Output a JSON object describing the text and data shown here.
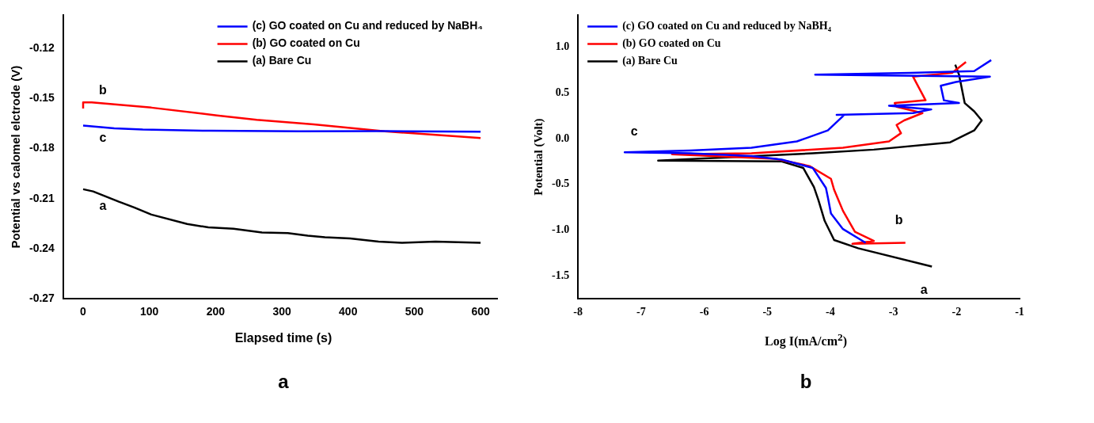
{
  "chart_data": [
    {
      "type": "line",
      "title": "a",
      "xlabel": "Elapsed time (s)",
      "ylabel": "Potential vs calomel elctrode (V)",
      "xlim": [
        -30,
        625
      ],
      "ylim": [
        -0.27,
        -0.1
      ],
      "xticks": [
        0,
        100,
        200,
        300,
        400,
        500,
        600
      ],
      "yticks": [
        -0.27,
        -0.24,
        -0.21,
        -0.18,
        -0.15,
        -0.12
      ],
      "grid": false,
      "legend": "top right",
      "marker": "none",
      "line_style": "solid",
      "series": [
        {
          "name": "(c) GO coated on Cu and reduced by NaBH₄",
          "color": "#0000ff",
          "x": [
            0,
            47,
            90,
            193,
            326,
            455,
            600
          ],
          "values": [
            -0.1662,
            -0.1678,
            -0.1686,
            -0.1693,
            -0.1696,
            -0.1695,
            -0.1698
          ]
        },
        {
          "name": "(b) GO coated on Cu",
          "color": "#ff0000",
          "x": [
            0,
            0,
            13,
            103,
            202,
            262,
            348,
            455,
            600
          ],
          "values": [
            -0.1559,
            -0.1523,
            -0.1523,
            -0.1554,
            -0.1601,
            -0.1627,
            -0.1655,
            -0.1696,
            -0.1737
          ]
        },
        {
          "name": "(a) Bare Cu",
          "color": "#000000",
          "x": [
            0,
            15,
            54,
            77,
            103,
            157,
            189,
            227,
            270,
            309,
            339,
            365,
            403,
            446,
            481,
            532,
            600
          ],
          "values": [
            -0.2044,
            -0.2057,
            -0.2119,
            -0.2153,
            -0.2196,
            -0.2253,
            -0.2273,
            -0.2281,
            -0.2304,
            -0.2307,
            -0.2323,
            -0.2332,
            -0.234,
            -0.2358,
            -0.2366,
            -0.2358,
            -0.2366
          ]
        }
      ],
      "annotations": [
        "c",
        "b",
        "a"
      ]
    },
    {
      "type": "line",
      "title": "b",
      "xlabel": "Log I(mA/cm$^{2}$)",
      "ylabel": "Potential (Volt)",
      "xlim": [
        -8,
        -1
      ],
      "ylim": [
        -1.75,
        1.35
      ],
      "xticks": [
        -8,
        -7,
        -6,
        -5,
        -4,
        -3,
        -2,
        -1
      ],
      "yticks": [
        -1.5,
        {
          "value": -1,
          "label": "-1.0"
        },
        -0.5,
        {
          "value": 0,
          "label": "0.0"
        },
        0.5,
        {
          "value": 1,
          "label": "1.0"
        }
      ],
      "grid": false,
      "legend": "top left",
      "marker": "none",
      "line_style": "solid",
      "series": [
        {
          "name": "(c) GO coated on Cu and reduced by NaBH₄",
          "color": "#0000ff",
          "x": [
            -3.44,
            -3.8,
            -3.99,
            -4.04,
            -4.07,
            -4.28,
            -4.77,
            -5.25,
            -6.22,
            -7.26,
            -6.22,
            -5.25,
            -4.53,
            -4.04,
            -3.78,
            -3.9,
            -2.69,
            -2.4,
            -3.07,
            -1.96,
            -2.2,
            -2.25,
            -2.01,
            -1.47,
            -4.24,
            -2.73,
            -1.72,
            -1.45
          ],
          "values": [
            -1.14,
            -0.99,
            -0.82,
            -0.64,
            -0.54,
            -0.32,
            -0.23,
            -0.19,
            -0.16,
            -0.15,
            -0.13,
            -0.1,
            -0.03,
            0.09,
            0.26,
            0.26,
            0.28,
            0.32,
            0.36,
            0.39,
            0.42,
            0.58,
            0.62,
            0.68,
            0.7,
            0.72,
            0.74,
            0.86
          ]
        },
        {
          "name": "(b) GO coated on Cu",
          "color": "#ff0000",
          "x": [
            -2.81,
            -3.65,
            -3.31,
            -3.61,
            -3.8,
            -3.94,
            -3.99,
            -4.33,
            -4.87,
            -6.51,
            -5.25,
            -3.8,
            -3.07,
            -2.88,
            -2.95,
            -2.83,
            -2.54,
            -2.95,
            -2.98,
            -2.49,
            -2.59,
            -2.69,
            -2.07,
            -1.85
          ],
          "values": [
            -1.14,
            -1.15,
            -1.12,
            -1.02,
            -0.79,
            -0.56,
            -0.44,
            -0.3,
            -0.22,
            -0.17,
            -0.16,
            -0.1,
            -0.03,
            0.06,
            0.15,
            0.2,
            0.28,
            0.35,
            0.39,
            0.42,
            0.55,
            0.68,
            0.72,
            0.84
          ]
        },
        {
          "name": "(a) Bare Cu",
          "color": "#000000",
          "x": [
            -2.39,
            -3.56,
            -3.94,
            -4.09,
            -4.19,
            -4.26,
            -4.43,
            -4.77,
            -6.73,
            -4.28,
            -3.31,
            -2.1,
            -1.72,
            -1.6,
            -1.72,
            -1.87,
            -1.96,
            -2.02
          ],
          "values": [
            -1.4,
            -1.2,
            -1.11,
            -0.9,
            -0.67,
            -0.53,
            -0.32,
            -0.25,
            -0.24,
            -0.16,
            -0.12,
            -0.04,
            0.09,
            0.2,
            0.3,
            0.39,
            0.7,
            0.81
          ]
        }
      ],
      "annotations": [
        "c",
        "b",
        "a"
      ]
    }
  ]
}
